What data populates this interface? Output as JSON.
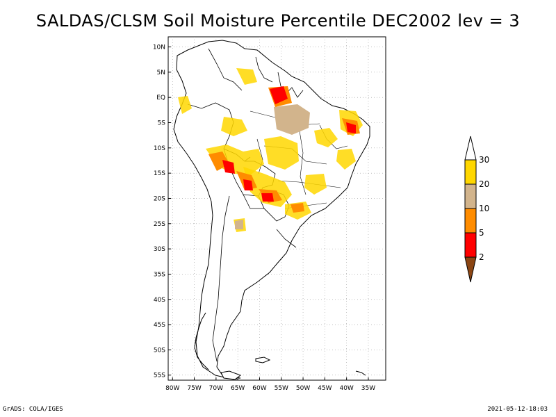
{
  "title": "SALDAS/CLSM Soil Moisture Percentile DEC2002 lev = 3",
  "footer": {
    "left": "GrADS: COLA/IGES",
    "right": "2021-05-12-18:03"
  },
  "map": {
    "lat_labels": [
      "10N",
      "5N",
      "EQ",
      "5S",
      "10S",
      "15S",
      "20S",
      "25S",
      "30S",
      "35S",
      "40S",
      "45S",
      "50S",
      "55S"
    ],
    "lon_labels": [
      "80W",
      "75W",
      "70W",
      "65W",
      "60W",
      "55W",
      "50W",
      "45W",
      "40W",
      "35W"
    ],
    "lat_range": [
      -56,
      12
    ],
    "lon_range": [
      -81,
      -31
    ]
  },
  "legend": {
    "labels": [
      "2",
      "5",
      "10",
      "20",
      "30"
    ],
    "colors": {
      "below_2": "#8b4513",
      "c2_5": "#ff0000",
      "c5_10": "#ff8c00",
      "c10_20": "#d2b48c",
      "c20_30": "#ffd700",
      "above_30": "#ffffff"
    }
  }
}
